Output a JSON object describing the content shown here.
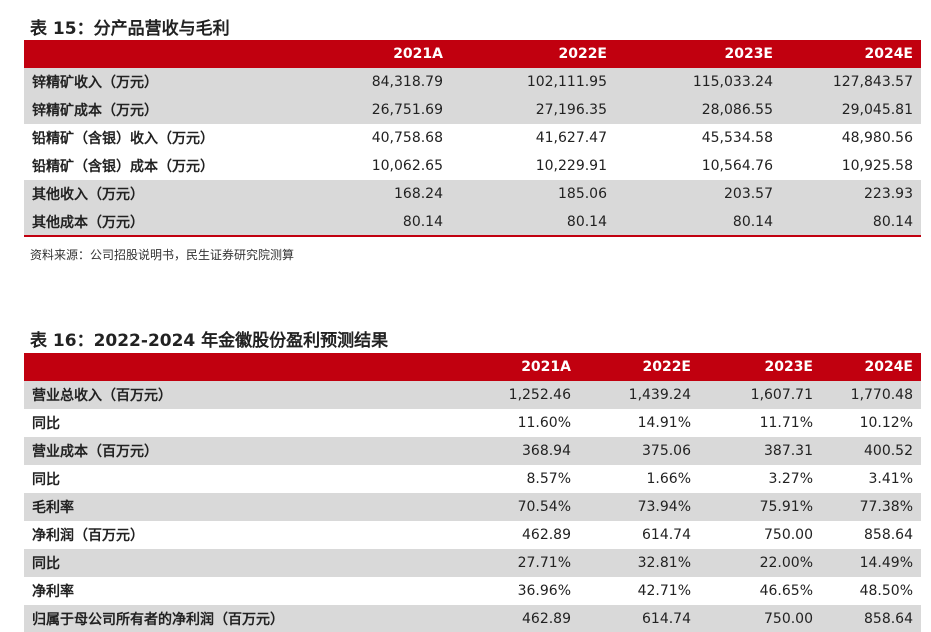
{
  "table15": {
    "caption": "表 15：分产品营收与毛利",
    "headers": [
      "",
      "2021A",
      "2022E",
      "2023E",
      "2024E"
    ],
    "rows": [
      {
        "label": "锌精矿收入（万元）",
        "values": [
          "84,318.79",
          "102,111.95",
          "115,033.24",
          "127,843.57"
        ],
        "shaded": true
      },
      {
        "label": "锌精矿成本（万元）",
        "values": [
          "26,751.69",
          "27,196.35",
          "28,086.55",
          "29,045.81"
        ],
        "shaded": true
      },
      {
        "label": "铅精矿（含银）收入（万元）",
        "values": [
          "40,758.68",
          "41,627.47",
          "45,534.58",
          "48,980.56"
        ],
        "shaded": false
      },
      {
        "label": "铅精矿（含银）成本（万元）",
        "values": [
          "10,062.65",
          "10,229.91",
          "10,564.76",
          "10,925.58"
        ],
        "shaded": false
      },
      {
        "label": "其他收入（万元）",
        "values": [
          "168.24",
          "185.06",
          "203.57",
          "223.93"
        ],
        "shaded": true
      },
      {
        "label": "其他成本（万元）",
        "values": [
          "80.14",
          "80.14",
          "80.14",
          "80.14"
        ],
        "shaded": true
      }
    ],
    "source": "资料来源：公司招股说明书，民生证券研究院测算"
  },
  "table16": {
    "caption": "表 16：2022-2024 年金徽股份盈利预测结果",
    "headers": [
      "",
      "2021A",
      "2022E",
      "2023E",
      "2024E"
    ],
    "rows": [
      {
        "label": "营业总收入（百万元）",
        "values": [
          "1,252.46",
          "1,439.24",
          "1,607.71",
          "1,770.48"
        ],
        "shaded": true
      },
      {
        "label": "同比",
        "values": [
          "11.60%",
          "14.91%",
          "11.71%",
          "10.12%"
        ],
        "shaded": false
      },
      {
        "label": "营业成本（百万元）",
        "values": [
          "368.94",
          "375.06",
          "387.31",
          "400.52"
        ],
        "shaded": true
      },
      {
        "label": "同比",
        "values": [
          "8.57%",
          "1.66%",
          "3.27%",
          "3.41%"
        ],
        "shaded": false
      },
      {
        "label": "毛利率",
        "values": [
          "70.54%",
          "73.94%",
          "75.91%",
          "77.38%"
        ],
        "shaded": true
      },
      {
        "label": "净利润（百万元）",
        "values": [
          "462.89",
          "614.74",
          "750.00",
          "858.64"
        ],
        "shaded": false
      },
      {
        "label": "同比",
        "values": [
          "27.71%",
          "32.81%",
          "22.00%",
          "14.49%"
        ],
        "shaded": true
      },
      {
        "label": "净利率",
        "values": [
          "36.96%",
          "42.71%",
          "46.65%",
          "48.50%"
        ],
        "shaded": false
      },
      {
        "label": "归属于母公司所有者的净利润（百万元）",
        "values": [
          "462.89",
          "614.74",
          "750.00",
          "858.64"
        ],
        "shaded": true
      }
    ]
  }
}
